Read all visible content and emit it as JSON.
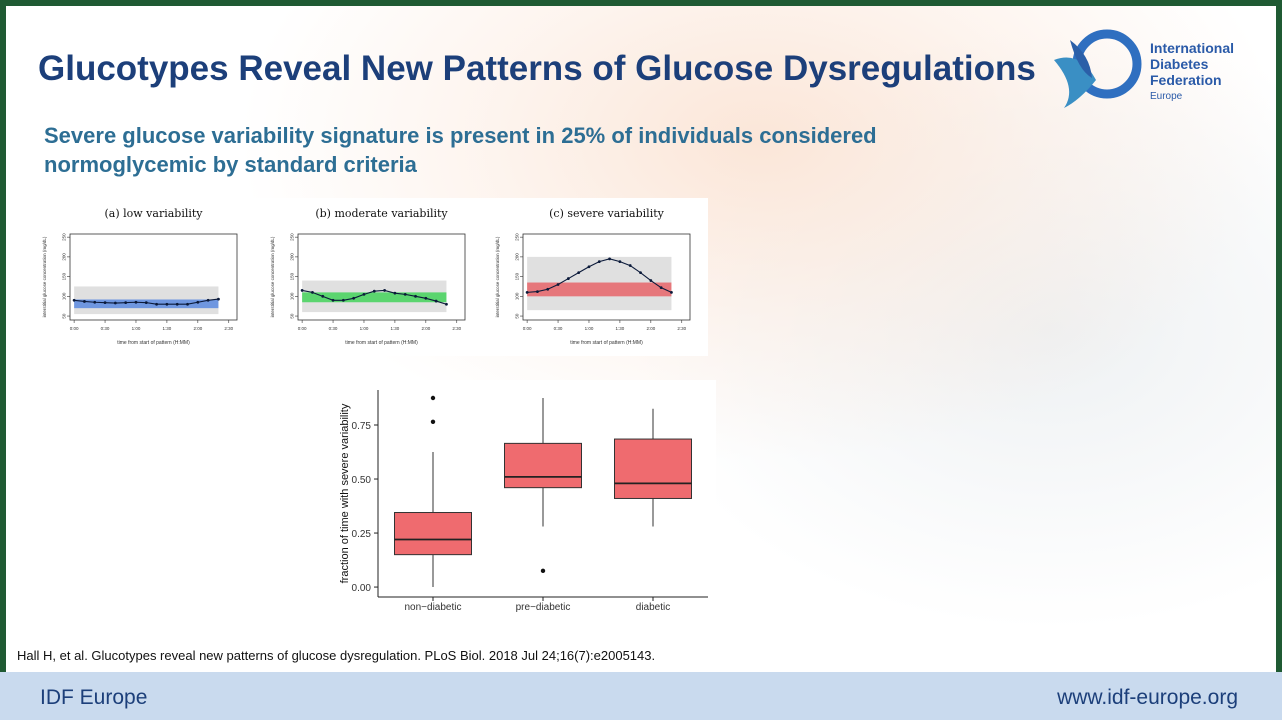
{
  "header": {
    "title": "Glucotypes Reveal New Patterns of Glucose Dysregulations",
    "subtitle": [
      "Severe glucose variability signature is present in 25% of individuals considered",
      "normoglycemic by standard criteria"
    ]
  },
  "logo": {
    "lines": [
      "International",
      "Diabetes",
      "Federation"
    ],
    "region": "Europe"
  },
  "chart_data": [
    {
      "type": "line",
      "title": "(a) low variability",
      "x_label": "time from start of pattern (H:MM)",
      "y_label": "interstitial glucose concentration (mg/dL)",
      "x": [
        0,
        10,
        20,
        30,
        40,
        50,
        60,
        70,
        80,
        90,
        100,
        110,
        120,
        130,
        140
      ],
      "values": [
        90,
        87,
        85,
        84,
        83,
        84,
        85,
        84,
        80,
        80,
        80,
        80,
        85,
        90,
        93
      ],
      "color": "#4a7fe0",
      "band": [
        70,
        92
      ],
      "envelope": [
        55,
        125
      ],
      "xlim": [
        -4,
        158
      ],
      "ylim": [
        40,
        258
      ],
      "xticks": [
        {
          "value": 0,
          "label": "0:00"
        },
        {
          "value": 30,
          "label": "0:30"
        },
        {
          "value": 60,
          "label": "1:00"
        },
        {
          "value": 90,
          "label": "1:30"
        },
        {
          "value": 120,
          "label": "2:00"
        },
        {
          "value": 150,
          "label": "2:30"
        }
      ],
      "yticks": [
        50,
        100,
        150,
        200,
        250
      ]
    },
    {
      "type": "line",
      "title": "(b) moderate variability",
      "x_label": "time from start of pattern (H:MM)",
      "y_label": "interstitial glucose concentration (mg/dL)",
      "x": [
        0,
        10,
        20,
        30,
        40,
        50,
        60,
        70,
        80,
        90,
        100,
        110,
        120,
        130,
        140
      ],
      "values": [
        115,
        110,
        100,
        90,
        90,
        95,
        105,
        113,
        115,
        108,
        105,
        100,
        95,
        88,
        80
      ],
      "color": "#2fd24a",
      "band": [
        85,
        110
      ],
      "envelope": [
        60,
        140
      ],
      "xlim": [
        -4,
        158
      ],
      "ylim": [
        40,
        258
      ],
      "xticks": [
        {
          "value": 0,
          "label": "0:00"
        },
        {
          "value": 30,
          "label": "0:30"
        },
        {
          "value": 60,
          "label": "1:00"
        },
        {
          "value": 90,
          "label": "1:30"
        },
        {
          "value": 120,
          "label": "2:00"
        },
        {
          "value": 150,
          "label": "2:30"
        }
      ],
      "yticks": [
        50,
        100,
        150,
        200,
        250
      ]
    },
    {
      "type": "line",
      "title": "(c) severe variability",
      "x_label": "time from start of pattern (H:MM)",
      "y_label": "interstitial glucose concentration (mg/dL)",
      "x": [
        0,
        10,
        20,
        30,
        40,
        50,
        60,
        70,
        80,
        90,
        100,
        110,
        120,
        130,
        140
      ],
      "values": [
        110,
        112,
        118,
        130,
        145,
        160,
        175,
        188,
        195,
        188,
        178,
        160,
        140,
        122,
        110
      ],
      "color": "#e8545a",
      "band": [
        100,
        135
      ],
      "envelope": [
        65,
        200
      ],
      "xlim": [
        -4,
        158
      ],
      "ylim": [
        40,
        258
      ],
      "xticks": [
        {
          "value": 0,
          "label": "0:00"
        },
        {
          "value": 30,
          "label": "0:30"
        },
        {
          "value": 60,
          "label": "1:00"
        },
        {
          "value": 90,
          "label": "1:30"
        },
        {
          "value": 120,
          "label": "2:00"
        },
        {
          "value": 150,
          "label": "2:30"
        }
      ],
      "yticks": [
        50,
        100,
        150,
        200,
        250
      ]
    },
    {
      "type": "box",
      "y_label": "fraction of time with severe variability",
      "categories": [
        "non−diabetic",
        "pre−diabetic",
        "diabetic"
      ],
      "color": "#ef6b6f",
      "boxes": [
        {
          "min": 0.0,
          "q1": 0.15,
          "median": 0.22,
          "q3": 0.345,
          "max": 0.625,
          "outliers": [
            0.765,
            0.875
          ]
        },
        {
          "min": 0.28,
          "q1": 0.46,
          "median": 0.51,
          "q3": 0.665,
          "max": 0.875,
          "outliers": [
            0.075
          ]
        },
        {
          "min": 0.28,
          "q1": 0.41,
          "median": 0.48,
          "q3": 0.685,
          "max": 0.825,
          "outliers": []
        }
      ],
      "ylim": [
        -0.046,
        0.912
      ],
      "yticks": [
        {
          "value": 0,
          "label": "0.00"
        },
        {
          "value": 0.25,
          "label": "0.25"
        },
        {
          "value": 0.5,
          "label": "0.50"
        },
        {
          "value": 0.75,
          "label": "0.75"
        }
      ]
    }
  ],
  "citation": "Hall H, et al. Glucotypes reveal new patterns of glucose dysregulation. PLoS Biol. 2018 Jul 24;16(7):e2005143.",
  "footer": {
    "left": "IDF Europe",
    "right": "www.idf-europe.org"
  }
}
